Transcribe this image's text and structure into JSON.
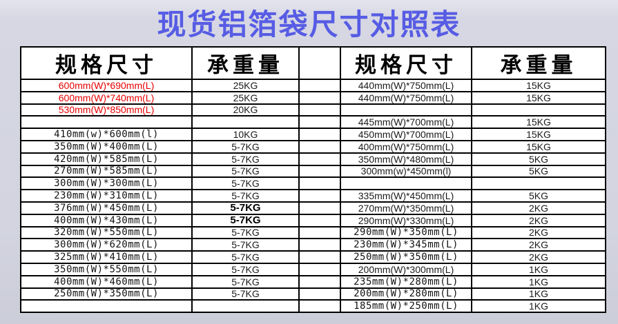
{
  "title": "现货铝箔袋尺寸对照表",
  "colors": {
    "title_text": "#575ce4",
    "highlight_text": "#e60000",
    "background": "#d3d4e0",
    "table_background": "#ffffff",
    "border": "#000000"
  },
  "table": {
    "headers": {
      "left_spec": "规格尺寸",
      "left_weight": "承重量",
      "right_spec": "规格尺寸",
      "right_weight": "承重量"
    },
    "rows": [
      {
        "left_spec": "600mm(W)*690mm(L)",
        "left_weight": "25KG",
        "left_font": "sans",
        "left_red": true,
        "left_weight_bold": false,
        "right_spec": "440mm(W)*750mm(L)",
        "right_weight": "15KG",
        "right_font": "sans",
        "right_weight_bold": false
      },
      {
        "left_spec": "600mm(W)*740mm(L)",
        "left_weight": "25KG",
        "left_font": "sans",
        "left_red": true,
        "left_weight_bold": false,
        "right_spec": "440mm(W)*750mm(L)",
        "right_weight": "15KG",
        "right_font": "sans",
        "right_weight_bold": false
      },
      {
        "left_spec": "530mm(W)*850mm(L)",
        "left_weight": "20KG",
        "left_font": "sans",
        "left_red": true,
        "left_weight_bold": false,
        "right_spec": "",
        "right_weight": "",
        "right_font": "sans",
        "right_weight_bold": false
      },
      {
        "left_spec": "",
        "left_weight": "",
        "left_font": "mono",
        "left_red": false,
        "left_weight_bold": false,
        "right_spec": "445mm(W)*700mm(L)",
        "right_weight": "15KG",
        "right_font": "sans",
        "right_weight_bold": false
      },
      {
        "left_spec": "410mm(w)*600mm(l)",
        "left_weight": "10KG",
        "left_font": "mono",
        "left_red": false,
        "left_weight_bold": false,
        "right_spec": "450mm(W)*700mm(L)",
        "right_weight": "15KG",
        "right_font": "sans",
        "right_weight_bold": false
      },
      {
        "left_spec": "350mm(W)*400mm(L)",
        "left_weight": "5-7KG",
        "left_font": "mono",
        "left_red": false,
        "left_weight_bold": false,
        "right_spec": "400mm(W)*750mm(L)",
        "right_weight": "15KG",
        "right_font": "sans",
        "right_weight_bold": false
      },
      {
        "left_spec": "420mm(W)*585mm(L)",
        "left_weight": "5-7KG",
        "left_font": "mono",
        "left_red": false,
        "left_weight_bold": false,
        "right_spec": "350mm(W)*480mm(L)",
        "right_weight": "5KG",
        "right_font": "sans",
        "right_weight_bold": false
      },
      {
        "left_spec": "270mm(W)*585mm(L)",
        "left_weight": "5-7KG",
        "left_font": "mono",
        "left_red": false,
        "left_weight_bold": false,
        "right_spec": "300mm(w)*450mm(l)",
        "right_weight": "5KG",
        "right_font": "sans",
        "right_weight_bold": false
      },
      {
        "left_spec": "300mm(W)*300mm(L)",
        "left_weight": "5-7KG",
        "left_font": "mono",
        "left_red": false,
        "left_weight_bold": false,
        "right_spec": "",
        "right_weight": "",
        "right_font": "sans",
        "right_weight_bold": false
      },
      {
        "left_spec": "230mm(W)*310mm(L)",
        "left_weight": "5-7KG",
        "left_font": "mono",
        "left_red": false,
        "left_weight_bold": false,
        "right_spec": "335mm(W)*450mm(L)",
        "right_weight": "5KG",
        "right_font": "sans",
        "right_weight_bold": false
      },
      {
        "left_spec": "376mm(W)*450mm(L)",
        "left_weight": "5-7KG",
        "left_font": "mono",
        "left_red": false,
        "left_weight_bold": true,
        "right_spec": "270mm(W)*350mm(L)",
        "right_weight": "2KG",
        "right_font": "sans",
        "right_weight_bold": false
      },
      {
        "left_spec": "400mm(W)*430mm(L)",
        "left_weight": "5-7KG",
        "left_font": "mono",
        "left_red": false,
        "left_weight_bold": true,
        "right_spec": "290mm(W)*330mm(L)",
        "right_weight": "2KG",
        "right_font": "sans",
        "right_weight_bold": false
      },
      {
        "left_spec": "320mm(W)*550mm(L)",
        "left_weight": "5-7KG",
        "left_font": "mono",
        "left_red": false,
        "left_weight_bold": false,
        "right_spec": "290mm(W)*350mm(L)",
        "right_weight": "2KG",
        "right_font": "mono",
        "right_weight_bold": false
      },
      {
        "left_spec": "300mm(W)*620mm(L)",
        "left_weight": "5-7KG",
        "left_font": "mono",
        "left_red": false,
        "left_weight_bold": false,
        "right_spec": "230mm(W)*345mm(L)",
        "right_weight": "2KG",
        "right_font": "mono",
        "right_weight_bold": false
      },
      {
        "left_spec": "325mm(W)*410mm(L)",
        "left_weight": "5-7KG",
        "left_font": "mono",
        "left_red": false,
        "left_weight_bold": false,
        "right_spec": "250mm(W)*350mm(L)",
        "right_weight": "2KG",
        "right_font": "mono",
        "right_weight_bold": false
      },
      {
        "left_spec": "350mm(W)*550mm(L)",
        "left_weight": "5-7KG",
        "left_font": "mono",
        "left_red": false,
        "left_weight_bold": false,
        "right_spec": "200mm(W)*300mm(L)",
        "right_weight": "1KG",
        "right_font": "sans",
        "right_weight_bold": false
      },
      {
        "left_spec": "400mm(W)*460mm(L)",
        "left_weight": "5-7KG",
        "left_font": "mono",
        "left_red": false,
        "left_weight_bold": false,
        "right_spec": "235mm(W)*280mm(L)",
        "right_weight": "1KG",
        "right_font": "mono",
        "right_weight_bold": false
      },
      {
        "left_spec": "250mm(W)*350mm(L)",
        "left_weight": "5-7KG",
        "left_font": "mono",
        "left_red": false,
        "left_weight_bold": false,
        "right_spec": "200mm(W)*280mm(L)",
        "right_weight": "1KG",
        "right_font": "mono",
        "right_weight_bold": false
      },
      {
        "left_spec": "",
        "left_weight": "",
        "left_font": "mono",
        "left_red": false,
        "left_weight_bold": false,
        "right_spec": "185mm(W)*250mm(L)",
        "right_weight": "1KG",
        "right_font": "mono",
        "right_weight_bold": false
      }
    ]
  }
}
